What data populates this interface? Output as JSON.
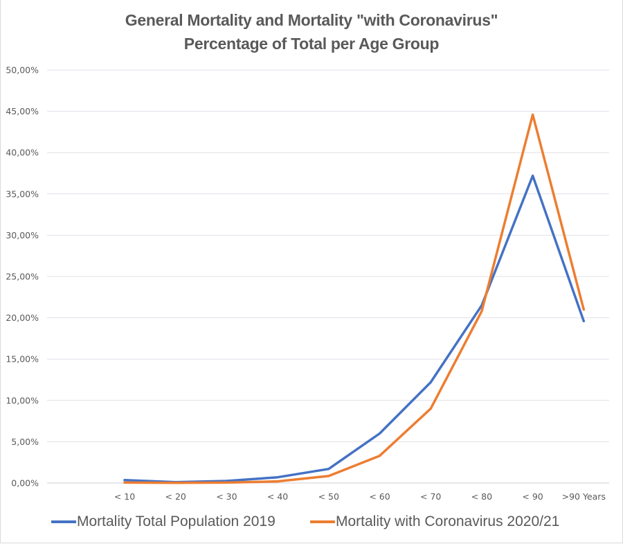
{
  "chart_data": {
    "type": "line",
    "title": "General Mortality and Mortality \"with Coronavirus\"",
    "subtitle": "Percentage of Total per Age Group",
    "xlabel": "",
    "ylabel": "",
    "categories": [
      "< 10",
      "< 20",
      "< 30",
      "< 40",
      "< 50",
      "< 60",
      "< 70",
      "< 80",
      "< 90",
      ">90 Years"
    ],
    "ylim": [
      0,
      50
    ],
    "yticks": [
      0,
      5,
      10,
      15,
      20,
      25,
      30,
      35,
      40,
      45,
      50
    ],
    "ytick_labels": [
      "0,00%",
      "5,00%",
      "10,00%",
      "15,00%",
      "20,00%",
      "25,00%",
      "30,00%",
      "35,00%",
      "40,00%",
      "45,00%",
      "50,00%"
    ],
    "grid": true,
    "legend_position": "bottom",
    "series": [
      {
        "name": "Mortality Total Population 2019",
        "color": "#4472c4",
        "values": [
          0.35,
          0.1,
          0.25,
          0.7,
          1.7,
          6.0,
          12.2,
          21.5,
          37.2,
          19.6
        ]
      },
      {
        "name": "Mortality with Coronavirus 2020/21",
        "color": "#ed7d31",
        "values": [
          0.05,
          0.02,
          0.05,
          0.2,
          0.85,
          3.3,
          9.0,
          20.8,
          44.6,
          21.0
        ]
      }
    ]
  }
}
